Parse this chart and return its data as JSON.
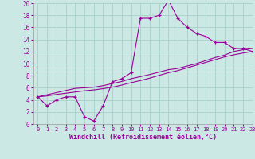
{
  "xlabel": "Windchill (Refroidissement éolien,°C)",
  "background_color": "#cce8e4",
  "grid_color": "#aad4cc",
  "line_color": "#990099",
  "x_data": [
    0,
    1,
    2,
    3,
    4,
    5,
    6,
    7,
    8,
    9,
    10,
    11,
    12,
    13,
    14,
    15,
    16,
    17,
    18,
    19,
    20,
    21,
    22,
    23
  ],
  "y_windchill": [
    4.5,
    3.0,
    4.0,
    4.5,
    4.5,
    1.2,
    0.5,
    3.0,
    7.0,
    7.5,
    8.5,
    17.5,
    17.5,
    18.0,
    20.5,
    17.5,
    16.0,
    15.0,
    14.5,
    13.5,
    13.5,
    12.5,
    12.5,
    12.0
  ],
  "y_line1": [
    4.5,
    4.85,
    5.2,
    5.55,
    5.9,
    6.0,
    6.1,
    6.35,
    6.7,
    7.05,
    7.5,
    7.85,
    8.2,
    8.6,
    9.0,
    9.2,
    9.6,
    10.0,
    10.5,
    11.0,
    11.4,
    12.0,
    12.3,
    12.5
  ],
  "y_line2": [
    4.5,
    4.65,
    4.9,
    5.1,
    5.3,
    5.5,
    5.65,
    5.85,
    6.1,
    6.45,
    6.85,
    7.2,
    7.6,
    8.05,
    8.5,
    8.85,
    9.3,
    9.75,
    10.2,
    10.65,
    11.1,
    11.45,
    11.75,
    12.0
  ],
  "ylim": [
    0,
    20
  ],
  "xlim": [
    -0.5,
    23
  ],
  "yticks": [
    0,
    2,
    4,
    6,
    8,
    10,
    12,
    14,
    16,
    18,
    20
  ],
  "xticks": [
    0,
    1,
    2,
    3,
    4,
    5,
    6,
    7,
    8,
    9,
    10,
    11,
    12,
    13,
    14,
    15,
    16,
    17,
    18,
    19,
    20,
    21,
    22,
    23
  ]
}
